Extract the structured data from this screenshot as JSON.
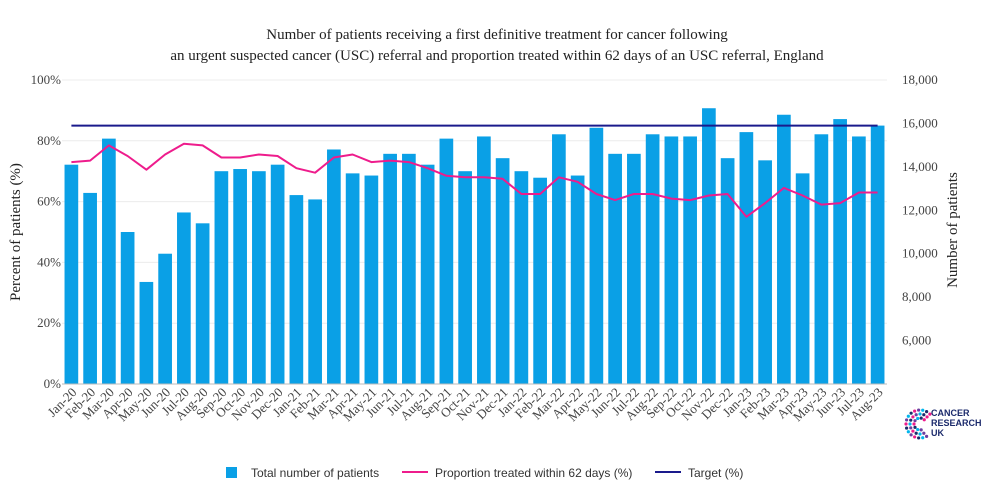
{
  "chart_data": {
    "type": "bar",
    "title_lines": [
      "Number of patients receiving a first definitive treatment for cancer following",
      "an urgent suspected cancer (USC) referral and proportion treated within 62 days of an USC referral, England"
    ],
    "ylabel_left": "Percent of patients (%)",
    "ylabel_right": "Number of patients",
    "ylim_left": [
      0,
      100
    ],
    "ylim_right": [
      4000,
      18000
    ],
    "left_ticks": [
      "0%",
      "20%",
      "40%",
      "60%",
      "80%",
      "100%"
    ],
    "right_ticks": [
      "6,000",
      "8,000",
      "10,000",
      "12,000",
      "14,000",
      "16,000",
      "18,000"
    ],
    "grid": true,
    "legend_position": "bottom",
    "categories": [
      "Jan-20",
      "Feb-20",
      "Mar-20",
      "Apr-20",
      "May-20",
      "Jun-20",
      "Jul-20",
      "Aug-20",
      "Sep-20",
      "Oct-20",
      "Nov-20",
      "Dec-20",
      "Jan-21",
      "Feb-21",
      "Mar-21",
      "Apr-21",
      "May-21",
      "Jun-21",
      "Jul-21",
      "Aug-21",
      "Sep-21",
      "Oct-21",
      "Nov-21",
      "Dec-21",
      "Jan-22",
      "Feb-22",
      "Mar-22",
      "Apr-22",
      "May-22",
      "Jun-22",
      "Jul-22",
      "Aug-22",
      "Sep-22",
      "Oct-22",
      "Nov-22",
      "Dec-22",
      "Jan-23",
      "Feb-23",
      "Mar-23",
      "Apr-23",
      "May-23",
      "Jun-23",
      "Jul-23",
      "Aug-23"
    ],
    "series": [
      {
        "name": "Total number of patients",
        "type": "bar",
        "axis": "right",
        "color": "#0aa0e6",
        "values": [
          14100,
          12800,
          15300,
          11000,
          8700,
          10000,
          11900,
          11400,
          13800,
          13900,
          13800,
          14100,
          12700,
          12500,
          14800,
          13700,
          13600,
          14600,
          14600,
          14100,
          15300,
          13800,
          15400,
          14400,
          13800,
          13500,
          15500,
          13600,
          15800,
          14600,
          14600,
          15500,
          15400,
          15400,
          16700,
          14400,
          15600,
          14300,
          16400,
          13700,
          15500,
          16200,
          15400,
          15900
        ]
      },
      {
        "name": "Proportion treated within 62 days (%)",
        "type": "line",
        "axis": "left",
        "color": "#ee1c8c",
        "values": [
          73,
          73.5,
          78.5,
          75,
          70.5,
          75.5,
          79,
          78.5,
          74.5,
          74.5,
          75.5,
          75,
          71,
          69.5,
          74.5,
          75.5,
          73,
          73.5,
          73,
          71,
          68.5,
          68,
          68,
          67.5,
          62.5,
          62.5,
          68,
          66.5,
          62.5,
          60.5,
          62.5,
          62.5,
          61,
          60.5,
          62,
          62.5,
          55,
          59.5,
          64.5,
          62,
          59,
          59.5,
          63,
          63
        ]
      },
      {
        "name": "Target (%)",
        "type": "line",
        "axis": "left",
        "color": "#1a1a8c",
        "values": [
          85,
          85,
          85,
          85,
          85,
          85,
          85,
          85,
          85,
          85,
          85,
          85,
          85,
          85,
          85,
          85,
          85,
          85,
          85,
          85,
          85,
          85,
          85,
          85,
          85,
          85,
          85,
          85,
          85,
          85,
          85,
          85,
          85,
          85,
          85,
          85,
          85,
          85,
          85,
          85,
          85,
          85,
          85,
          85
        ]
      }
    ]
  },
  "logo": {
    "lines": [
      "CANCER",
      "RESEARCH",
      "UK"
    ],
    "colors": [
      "#ee1c8c",
      "#1b2a6b",
      "#00b6ed",
      "#6b3fa0"
    ]
  }
}
